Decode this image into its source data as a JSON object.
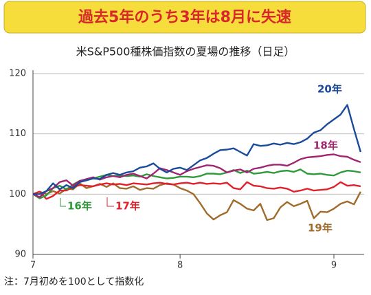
{
  "chart_data": {
    "type": "line",
    "title": "過去5年のうち3年は8月に失速",
    "subtitle": "米S&P500種株価指数の夏場の推移（日足）",
    "note": "注：7月初めを100として指数化",
    "categories": [
      "7",
      null,
      null,
      null,
      null,
      null,
      null,
      null,
      null,
      null,
      null,
      null,
      null,
      null,
      null,
      null,
      null,
      null,
      null,
      null,
      null,
      null,
      "8",
      null,
      null,
      null,
      null,
      null,
      null,
      null,
      null,
      null,
      null,
      null,
      null,
      null,
      null,
      null,
      null,
      null,
      null,
      null,
      null,
      null,
      null,
      "9",
      null,
      null,
      null,
      null
    ],
    "ylim": [
      90,
      120
    ],
    "yticks": [
      90,
      100,
      110,
      120
    ],
    "grid": true,
    "series": [
      {
        "name": "20年",
        "color": "#1a4a9a",
        "values": [
          100,
          100,
          100.5,
          101.8,
          100.8,
          101.5,
          101,
          102,
          102.3,
          102.6,
          102.5,
          103.2,
          103.5,
          103.2,
          103.6,
          103.8,
          104.4,
          104.6,
          105.1,
          104.2,
          103.6,
          104.2,
          104.4,
          104,
          104.8,
          105.6,
          106,
          106.7,
          107.3,
          107.4,
          107.6,
          107,
          106.4,
          108.3,
          108,
          108.1,
          108.4,
          108.2,
          108.5,
          108.3,
          108.6,
          109.2,
          110.2,
          110.6,
          111.6,
          112.4,
          113.2,
          114.8,
          110.8,
          107
        ]
      },
      {
        "name": "18年",
        "color": "#a0256f",
        "values": [
          100,
          99.5,
          100.5,
          101,
          102,
          102.3,
          101.4,
          102.2,
          102.5,
          102.8,
          102.4,
          102.8,
          103,
          102.8,
          103.2,
          103.4,
          103,
          102.6,
          103.4,
          104.3,
          104,
          103.6,
          103.2,
          103.8,
          104.2,
          104.5,
          104.8,
          104.7,
          104.3,
          103.6,
          103.9,
          104.1,
          103.6,
          104.2,
          104.4,
          104.7,
          104.9,
          104.9,
          104.7,
          105.2,
          105.8,
          106.1,
          106.2,
          106.3,
          106.5,
          106.6,
          106.3,
          106.2,
          105.7,
          105.3
        ]
      },
      {
        "name": "16年",
        "color": "#2e9a3a",
        "values": [
          100,
          99.3,
          99.8,
          101,
          101.4,
          100.8,
          101.6,
          102.2,
          102.3,
          102.6,
          102.9,
          103.2,
          103,
          103.1,
          103,
          103.1,
          102.9,
          103.3,
          103,
          102.8,
          102.6,
          102.7,
          102.9,
          102.9,
          102.8,
          103,
          103.4,
          103.4,
          103.3,
          103.6,
          104,
          103.5,
          103.9,
          103.4,
          103.5,
          103.7,
          103.5,
          103.8,
          103.9,
          103.7,
          104.1,
          103.4,
          103.3,
          103.4,
          103.2,
          103.1,
          103.6,
          103.9,
          103.8,
          103.6
        ]
      },
      {
        "name": "17年",
        "color": "#e0202a",
        "values": [
          100,
          100.4,
          99.2,
          99.7,
          100.6,
          100.6,
          101.2,
          101.5,
          101.4,
          101.3,
          101.6,
          101.8,
          101.6,
          101.7,
          101.5,
          101.8,
          101.7,
          101.6,
          101.8,
          101.9,
          101.7,
          101.6,
          101.8,
          101.9,
          101.7,
          101.9,
          101.7,
          101.8,
          101.7,
          101.9,
          101,
          100.8,
          102,
          101.4,
          101.3,
          101,
          100.9,
          101.1,
          100.9,
          100.4,
          100.6,
          100.9,
          100.6,
          100.7,
          100.8,
          101.2,
          102,
          101.4,
          101.5,
          101.3
        ]
      },
      {
        "name": "19年",
        "color": "#a06a2a",
        "values": [
          100,
          100.4,
          100,
          100.5,
          100.1,
          100.9,
          100.8,
          101.8,
          101,
          101.3,
          101.7,
          101.2,
          101.8,
          101,
          100.9,
          101.3,
          100.7,
          101,
          100.9,
          101.5,
          101.8,
          101.6,
          101,
          100.6,
          100,
          98.5,
          96.8,
          95.8,
          96.5,
          97,
          99,
          98.4,
          97.6,
          97.3,
          98.4,
          95.7,
          96,
          97.8,
          98.7,
          98,
          98.4,
          98.9,
          96,
          97.1,
          97,
          97.6,
          98.4,
          98.8,
          98.3,
          100.4
        ]
      }
    ]
  }
}
